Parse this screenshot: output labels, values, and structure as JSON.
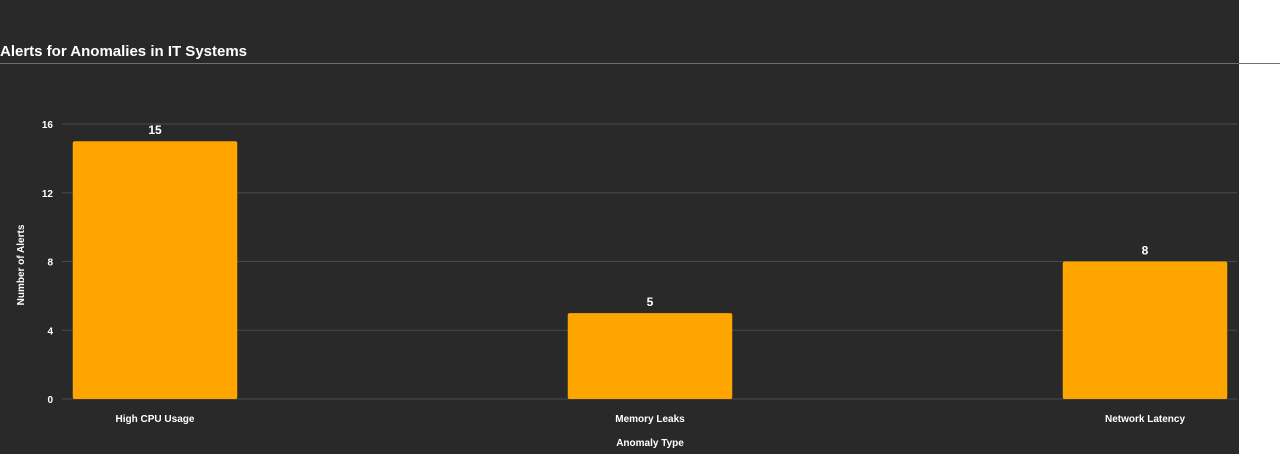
{
  "title": "Alerts for Anomalies in IT Systems",
  "chart_data": {
    "type": "bar",
    "categories": [
      "High CPU Usage",
      "Memory Leaks",
      "Network Latency"
    ],
    "values": [
      15,
      5,
      8
    ],
    "xlabel": "Anomaly Type",
    "ylabel": "Number of Alerts",
    "ylim": [
      0,
      16
    ],
    "yticks": [
      0,
      4,
      8,
      12,
      16
    ],
    "grid": true,
    "data_labels": true,
    "bar_color": "#FFA500"
  },
  "colors": {
    "background": "#292929",
    "grid": "#4a4a4a",
    "text": "#ffffff"
  }
}
